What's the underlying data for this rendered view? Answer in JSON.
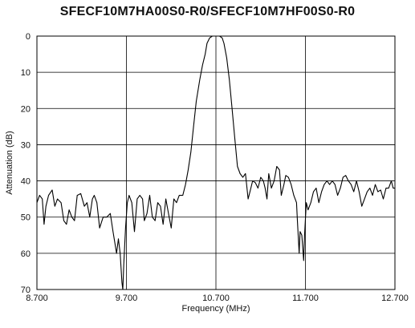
{
  "chart_data": {
    "type": "line",
    "title": "SFECF10M7HA00S0-R0/SFECF10M7HF00S0-R0",
    "xlabel": "Frequency (MHz)",
    "ylabel": "Attenuation (dB)",
    "xlim": [
      8.7,
      12.7
    ],
    "ylim": [
      0,
      70
    ],
    "y_inverted": true,
    "grid": true,
    "x_ticks": [
      8.7,
      9.7,
      10.7,
      11.7,
      12.7
    ],
    "x_tick_labels": [
      "8.700",
      "9.700",
      "10.700",
      "11.700",
      "12.700"
    ],
    "y_ticks": [
      0,
      10,
      20,
      30,
      40,
      50,
      60,
      70
    ],
    "y_tick_labels": [
      "0",
      "10",
      "20",
      "30",
      "40",
      "50",
      "60",
      "70"
    ],
    "series": [
      {
        "color": "#000000",
        "points": [
          [
            8.7,
            46
          ],
          [
            8.73,
            44
          ],
          [
            8.76,
            45
          ],
          [
            8.78,
            52
          ],
          [
            8.8,
            47
          ],
          [
            8.83,
            44
          ],
          [
            8.87,
            42.5
          ],
          [
            8.9,
            47
          ],
          [
            8.93,
            45
          ],
          [
            8.97,
            46
          ],
          [
            9.0,
            51
          ],
          [
            9.03,
            52
          ],
          [
            9.06,
            48
          ],
          [
            9.09,
            50
          ],
          [
            9.12,
            51
          ],
          [
            9.15,
            44
          ],
          [
            9.19,
            43.5
          ],
          [
            9.23,
            47
          ],
          [
            9.26,
            46
          ],
          [
            9.29,
            50
          ],
          [
            9.32,
            45
          ],
          [
            9.34,
            44
          ],
          [
            9.37,
            46
          ],
          [
            9.4,
            53
          ],
          [
            9.44,
            50
          ],
          [
            9.48,
            50
          ],
          [
            9.52,
            49
          ],
          [
            9.55,
            54
          ],
          [
            9.57,
            57
          ],
          [
            9.59,
            60
          ],
          [
            9.61,
            56
          ],
          [
            9.63,
            60
          ],
          [
            9.65,
            68
          ],
          [
            9.66,
            70
          ],
          [
            9.67,
            63
          ],
          [
            9.69,
            53
          ],
          [
            9.71,
            46
          ],
          [
            9.73,
            44
          ],
          [
            9.76,
            46
          ],
          [
            9.79,
            54
          ],
          [
            9.82,
            45
          ],
          [
            9.85,
            44
          ],
          [
            9.88,
            45
          ],
          [
            9.9,
            51
          ],
          [
            9.93,
            49
          ],
          [
            9.96,
            44
          ],
          [
            9.99,
            50
          ],
          [
            10.02,
            51
          ],
          [
            10.05,
            46
          ],
          [
            10.08,
            47
          ],
          [
            10.11,
            52
          ],
          [
            10.14,
            45
          ],
          [
            10.17,
            49
          ],
          [
            10.2,
            53
          ],
          [
            10.23,
            45
          ],
          [
            10.26,
            46
          ],
          [
            10.29,
            44
          ],
          [
            10.33,
            44
          ],
          [
            10.36,
            41
          ],
          [
            10.39,
            37
          ],
          [
            10.42,
            32
          ],
          [
            10.45,
            25
          ],
          [
            10.48,
            18
          ],
          [
            10.52,
            12
          ],
          [
            10.55,
            8
          ],
          [
            10.58,
            5
          ],
          [
            10.6,
            2
          ],
          [
            10.63,
            0.5
          ],
          [
            10.66,
            0
          ],
          [
            10.7,
            0
          ],
          [
            10.74,
            0
          ],
          [
            10.77,
            0.5
          ],
          [
            10.79,
            2
          ],
          [
            10.82,
            6
          ],
          [
            10.85,
            12
          ],
          [
            10.88,
            20
          ],
          [
            10.91,
            28
          ],
          [
            10.94,
            36
          ],
          [
            10.97,
            38
          ],
          [
            11.0,
            39
          ],
          [
            11.03,
            38
          ],
          [
            11.06,
            45
          ],
          [
            11.08,
            43
          ],
          [
            11.11,
            40
          ],
          [
            11.14,
            40.5
          ],
          [
            11.17,
            42
          ],
          [
            11.2,
            39
          ],
          [
            11.23,
            40
          ],
          [
            11.25,
            42
          ],
          [
            11.27,
            45
          ],
          [
            11.29,
            38
          ],
          [
            11.32,
            42
          ],
          [
            11.35,
            40
          ],
          [
            11.38,
            36
          ],
          [
            11.41,
            37
          ],
          [
            11.43,
            44
          ],
          [
            11.46,
            41
          ],
          [
            11.48,
            38.5
          ],
          [
            11.51,
            39
          ],
          [
            11.54,
            41
          ],
          [
            11.57,
            44
          ],
          [
            11.6,
            46
          ],
          [
            11.61,
            51
          ],
          [
            11.63,
            60
          ],
          [
            11.64,
            54
          ],
          [
            11.66,
            55
          ],
          [
            11.68,
            62
          ],
          [
            11.69,
            55
          ],
          [
            11.71,
            46
          ],
          [
            11.73,
            48
          ],
          [
            11.76,
            46
          ],
          [
            11.79,
            43
          ],
          [
            11.82,
            42
          ],
          [
            11.85,
            46
          ],
          [
            11.88,
            43
          ],
          [
            11.91,
            41
          ],
          [
            11.94,
            40
          ],
          [
            11.97,
            41
          ],
          [
            12.0,
            40
          ],
          [
            12.03,
            41
          ],
          [
            12.06,
            44
          ],
          [
            12.09,
            42
          ],
          [
            12.12,
            39
          ],
          [
            12.15,
            38.5
          ],
          [
            12.18,
            40
          ],
          [
            12.21,
            41
          ],
          [
            12.24,
            43
          ],
          [
            12.27,
            40
          ],
          [
            12.3,
            43
          ],
          [
            12.33,
            47
          ],
          [
            12.36,
            45
          ],
          [
            12.39,
            43
          ],
          [
            12.42,
            42
          ],
          [
            12.45,
            44
          ],
          [
            12.48,
            41
          ],
          [
            12.51,
            43
          ],
          [
            12.54,
            42.5
          ],
          [
            12.57,
            45
          ],
          [
            12.6,
            42
          ],
          [
            12.63,
            42
          ],
          [
            12.66,
            40
          ],
          [
            12.68,
            42
          ],
          [
            12.7,
            42
          ]
        ]
      }
    ]
  }
}
